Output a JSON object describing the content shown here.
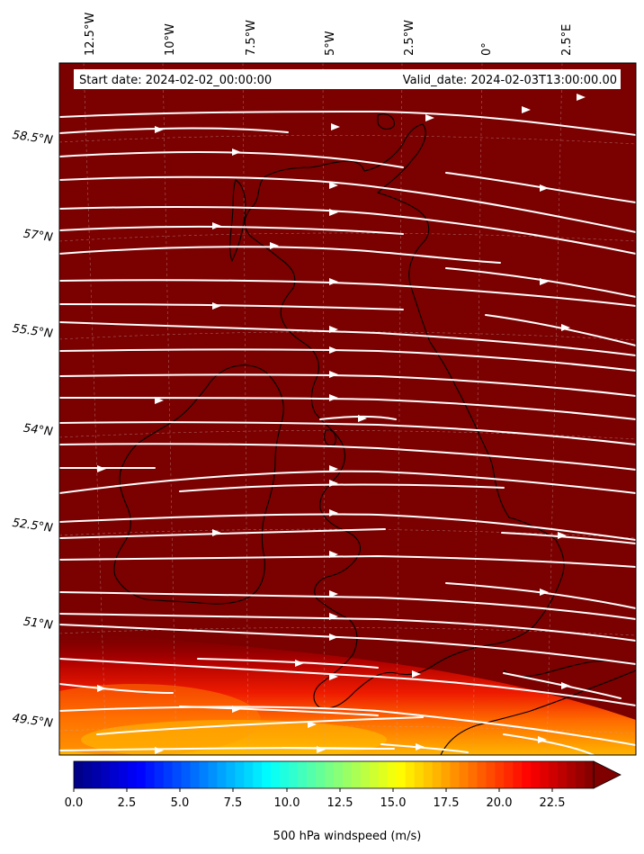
{
  "map": {
    "start_date": "Start date: 2024-02-02_00:00:00",
    "valid_date": "Valid_date: 2024-02-03T13:00:00.00",
    "longitude_labels": [
      "12.5°W",
      "10°W",
      "7.5°W",
      "5°W",
      "2.5°W",
      "0°",
      "2.5°E"
    ],
    "latitude_labels": [
      "58.5°N",
      "57°N",
      "55.5°N",
      "54°N",
      "52.5°N",
      "51°N",
      "49.5°N"
    ],
    "background_color": "#7b0000",
    "coastline_color": "#000000",
    "streamline_color": "#ffffff"
  },
  "colorbar": {
    "label": "500 hPa windspeed (m/s)",
    "tick_labels": [
      "0.0",
      "2.5",
      "5.0",
      "7.5",
      "10.0",
      "12.5",
      "15.0",
      "17.5",
      "20.0",
      "22.5"
    ],
    "colormap": "jet",
    "extend": "max"
  }
}
